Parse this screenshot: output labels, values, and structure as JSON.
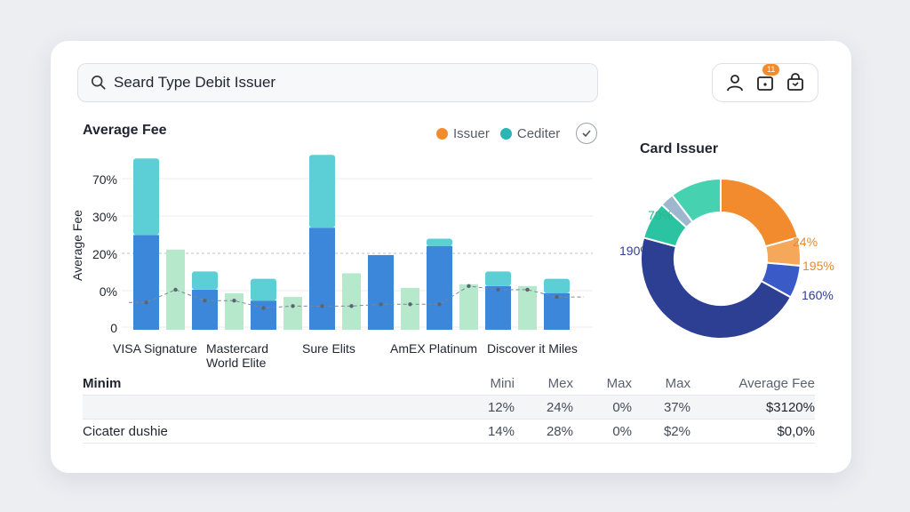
{
  "search": {
    "value": "Seard Type Debit Issuer"
  },
  "toolbar": {
    "notification_count": "11"
  },
  "colors": {
    "dark_blue": "#3d87db",
    "cyan": "#5ccfd6",
    "mint": "#b6e9cc",
    "issuer": "#f28a2e",
    "cediter": "#2bb5b5",
    "donut_orange": "#f28a2e",
    "donut_light_orange": "#f6a85a",
    "donut_blue": "#3a5ac7",
    "donut_navy": "#2d3f93",
    "donut_gray": "#9fb6cf",
    "donut_teal": "#2cc3a2",
    "donut_teal_light": "#46d1b0"
  },
  "chart_data": [
    {
      "type": "bar",
      "title": "Average Fee",
      "xlabel": "",
      "ylabel": "Average Fee",
      "y_tick_labels": [
        "0",
        "0%",
        "20%",
        "30%",
        "70%"
      ],
      "legend": [
        "Issuer",
        "Cediter"
      ],
      "legend_position": "top-right",
      "categories": [
        "VISA Signature",
        "Mastercard World Elite",
        "Sure Elits",
        "AmEX Platinum",
        "Discover it Miles"
      ],
      "category_lines": [
        [
          "VISA Signature"
        ],
        [
          "Mastercard",
          "World Elite"
        ],
        [
          "Sure Elits"
        ],
        [
          "AmEX Platinum"
        ],
        [
          "Discover it Miles"
        ]
      ],
      "bars": [
        {
          "group": 0,
          "base": 26,
          "top": 21
        },
        {
          "group": 0,
          "mint": 22
        },
        {
          "group": 1,
          "base": 11,
          "top": 5
        },
        {
          "group": 1,
          "mint": 10
        },
        {
          "group": 1,
          "base": 8,
          "top": 6
        },
        {
          "group": 2,
          "mint": 9
        },
        {
          "group": 2,
          "base": 28,
          "top": 20
        },
        {
          "group": 2,
          "mint": 15.5
        },
        {
          "group": 3,
          "base": 20.5,
          "top": 0
        },
        {
          "group": 3,
          "mint": 11.5
        },
        {
          "group": 3,
          "base": 23,
          "top": 2
        },
        {
          "group": 4,
          "mint": 12.5
        },
        {
          "group": 4,
          "base": 12,
          "top": 4
        },
        {
          "group": 4,
          "mint": 12
        },
        {
          "group": 4,
          "base": 10,
          "top": 4
        }
      ],
      "trend_line": [
        7.5,
        11,
        8,
        8,
        6,
        6.5,
        6.5,
        6.5,
        7,
        7,
        7,
        12,
        11,
        11,
        9
      ],
      "ylim": [
        0,
        50
      ],
      "grid": true
    },
    {
      "type": "pie",
      "title": "Card Issuer",
      "labels": [
        "24%",
        "195%",
        "160%",
        "",
        "",
        "70%"
      ],
      "left_label": "190%",
      "slices": [
        {
          "value": 22,
          "color_key": "donut_orange",
          "label": "24%"
        },
        {
          "value": 6,
          "color_key": "donut_light_orange",
          "label": "195%"
        },
        {
          "value": 7,
          "color_key": "donut_blue",
          "label": "160%"
        },
        {
          "value": 49,
          "color_key": "donut_navy",
          "label": "190%"
        },
        {
          "value": 8,
          "color_key": "donut_teal",
          "label": ""
        },
        {
          "value": 3,
          "color_key": "donut_gray",
          "label": ""
        },
        {
          "value": 11,
          "color_key": "donut_teal_light",
          "label": "70%"
        }
      ]
    }
  ],
  "table": {
    "headers": [
      "Minim",
      "Mini",
      "Mex",
      "Max",
      "Max",
      "Average Fee"
    ],
    "rows": [
      [
        "",
        "12%",
        "24%",
        "0%",
        "37%",
        "$3120%"
      ],
      [
        "Cicater dushie",
        "14%",
        "28%",
        "0%",
        "$2%",
        "$0,0%"
      ]
    ]
  }
}
